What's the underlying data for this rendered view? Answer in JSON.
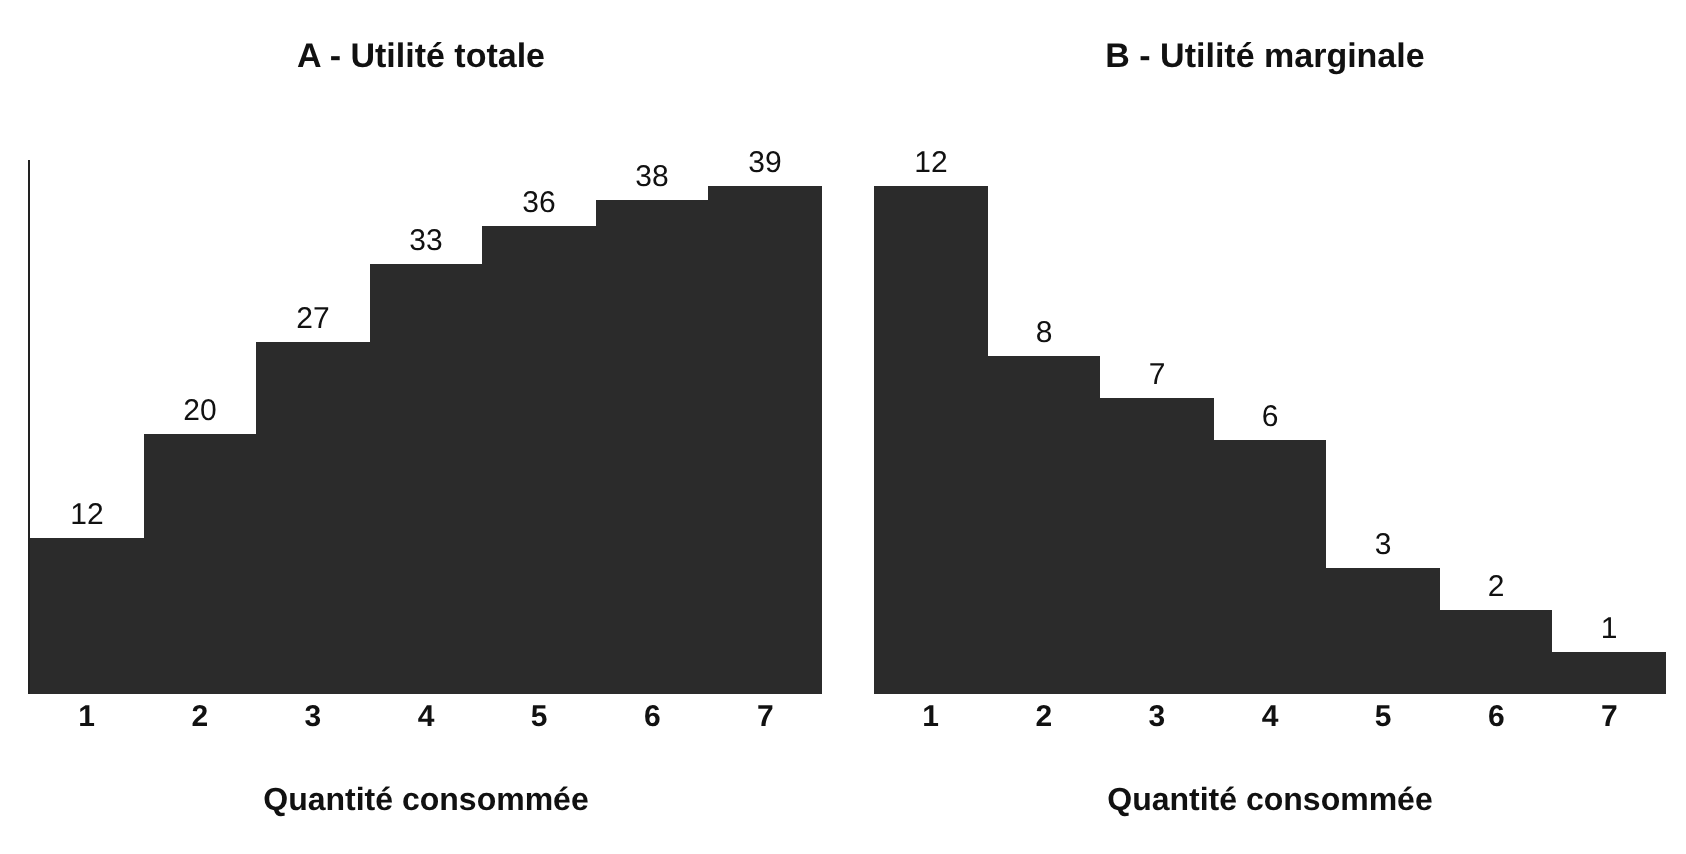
{
  "chart_data": [
    {
      "type": "bar",
      "title": "A - Utilité totale",
      "xlabel": "Quantité consommée",
      "categories": [
        "1",
        "2",
        "3",
        "4",
        "5",
        "6",
        "7"
      ],
      "values": [
        12,
        20,
        27,
        33,
        36,
        38,
        39
      ],
      "color": "#2b2b2b",
      "data_labels": true,
      "tick_labels": "x"
    },
    {
      "type": "bar",
      "title": "B - Utilité marginale",
      "xlabel": "Quantité consommée",
      "categories": [
        "1",
        "2",
        "3",
        "4",
        "5",
        "6",
        "7"
      ],
      "values": [
        12,
        8,
        7,
        6,
        3,
        2,
        1
      ],
      "color": "#2b2b2b",
      "data_labels": true,
      "tick_labels": "x"
    }
  ]
}
